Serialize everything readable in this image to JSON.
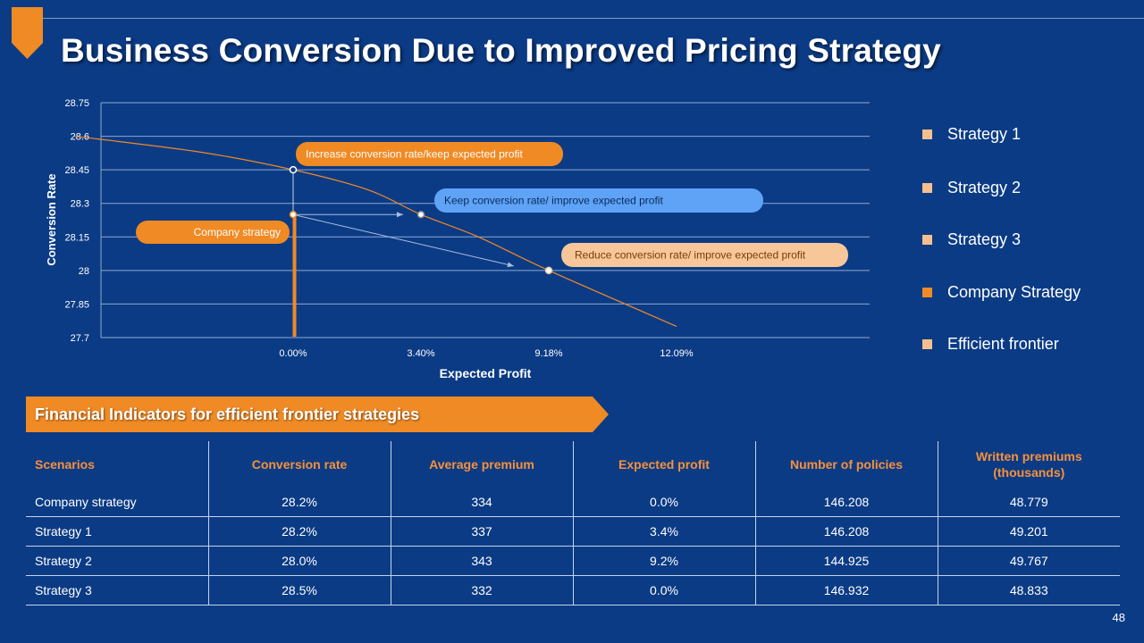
{
  "slide": {
    "title": "Business Conversion Due to Improved Pricing Strategy",
    "page_number": "48"
  },
  "colors": {
    "background": "#0b3b85",
    "accent_orange": "#f08a24",
    "light_orange": "#f6c08e",
    "light_blue": "#5ea3f5",
    "peach": "#f7c79a",
    "grid": "#8fa8d3"
  },
  "chart_data": {
    "type": "line",
    "xlabel": "Expected Profit",
    "ylabel": "Conversion Rate",
    "ylim": [
      27.7,
      28.75
    ],
    "y_ticks": [
      "28.75",
      "28.6",
      "28.45",
      "28.3",
      "28.15",
      "28",
      "27.85",
      "27.7"
    ],
    "x_ticks": [
      "0.00%",
      "3.40%",
      "9.18%",
      "12.09%"
    ],
    "x_tick_values": [
      0.0,
      3.4,
      9.18,
      12.09
    ],
    "grid": true,
    "series": [
      {
        "name": "Efficient frontier",
        "x": [
          -5.8,
          -2.5,
          0.0,
          2.0,
          3.4,
          6.0,
          9.18,
          12.09
        ],
        "y": [
          28.6,
          28.53,
          28.45,
          28.36,
          28.25,
          28.15,
          28.0,
          27.75
        ]
      },
      {
        "name": "Strategy 1",
        "points": [
          {
            "x": 3.4,
            "y": 28.25
          }
        ]
      },
      {
        "name": "Strategy 2",
        "points": [
          {
            "x": 9.18,
            "y": 28.0
          }
        ]
      },
      {
        "name": "Strategy 3",
        "points": [
          {
            "x": 0.0,
            "y": 28.45
          }
        ]
      },
      {
        "name": "Company Strategy",
        "points": [
          {
            "x": 0.0,
            "y": 28.25
          }
        ]
      }
    ],
    "company_strategy_line": {
      "x": 0.0,
      "y_from": 27.7,
      "y_to": 28.25
    },
    "arrows": [
      {
        "from": {
          "x": 0.0,
          "y": 28.25
        },
        "to": {
          "x": 3.4,
          "y": 28.25
        }
      },
      {
        "from": {
          "x": 0.0,
          "y": 28.25
        },
        "to": {
          "x": 7.6,
          "y": 28.02
        }
      }
    ],
    "callouts": [
      {
        "text": "Increase conversion rate/keep expected profit",
        "style": "orange"
      },
      {
        "text": "Keep conversion rate/ improve expected profit",
        "style": "blue"
      },
      {
        "text": "Company strategy",
        "style": "orange"
      },
      {
        "text": "Reduce conversion rate/ improve expected profit",
        "style": "peach"
      }
    ]
  },
  "legend": [
    {
      "label": "Strategy 1",
      "color": "#f6c08e"
    },
    {
      "label": "Strategy 2",
      "color": "#f6c08e"
    },
    {
      "label": "Strategy 3",
      "color": "#f6c08e"
    },
    {
      "label": "Company Strategy",
      "color": "#f08a24"
    },
    {
      "label": "Efficient frontier",
      "color": "#f6c08e"
    }
  ],
  "indicators": {
    "banner_title": "Financial Indicators for efficient frontier strategies",
    "headers": [
      "Scenarios",
      "Conversion rate",
      "Average premium",
      "Expected profit",
      "Number of policies",
      "Written premiums (thousands)"
    ],
    "rows": [
      [
        "Company strategy",
        "28.2%",
        "334",
        "0.0%",
        "146.208",
        "48.779"
      ],
      [
        "Strategy 1",
        "28.2%",
        "337",
        "3.4%",
        "146.208",
        "49.201"
      ],
      [
        "Strategy 2",
        "28.0%",
        "343",
        "9.2%",
        "144.925",
        "49.767"
      ],
      [
        "Strategy 3",
        "28.5%",
        "332",
        "0.0%",
        "146.932",
        "48.833"
      ]
    ]
  }
}
